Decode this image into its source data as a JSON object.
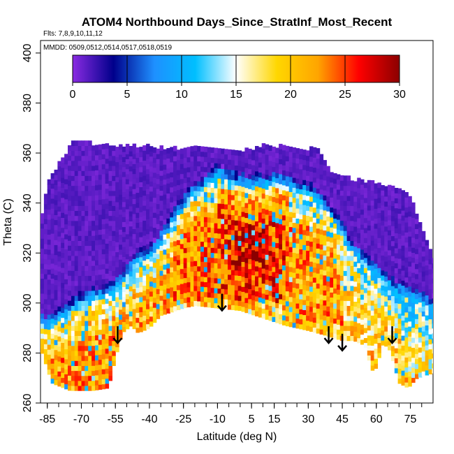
{
  "chart_data": {
    "type": "heatmap",
    "title": "ATOM4 Northbound Days_Since_StratInf_Most_Recent",
    "flights_note": "Flts: 7,8,9,10,11,12",
    "dates_note": "MMDD: 0509,0512,0514,0517,0518,0519",
    "xlabel": "Latitude (deg N)",
    "ylabel": "Theta (C)",
    "xlim": [
      -88,
      85
    ],
    "ylim": [
      260,
      405
    ],
    "x_ticks": [
      -85,
      -70,
      -55,
      -40,
      -25,
      -10,
      5,
      15,
      30,
      45,
      60,
      75
    ],
    "x_tick_labels": [
      "-85",
      "-70",
      "-55",
      "-40",
      "-25",
      "-10",
      "5",
      "15",
      "30",
      "45",
      "60",
      "75"
    ],
    "y_ticks": [
      260,
      280,
      300,
      320,
      340,
      360,
      380,
      400
    ],
    "y_tick_labels": [
      "260",
      "280",
      "300",
      "320",
      "340",
      "360",
      "380",
      "400"
    ],
    "colorbar": {
      "min": 0,
      "max": 30,
      "ticks": [
        0,
        5,
        10,
        15,
        20,
        25,
        30
      ],
      "tick_labels": [
        "0",
        "5",
        "10",
        "15",
        "20",
        "25",
        "30"
      ],
      "colors": [
        "#8a2be2",
        "#00008b",
        "#1e90ff",
        "#00bfff",
        "#ffffff",
        "#ffd700",
        "#ffa500",
        "#ff0000",
        "#8b0000"
      ]
    },
    "data_top_boundary": [
      [
        -88,
        332
      ],
      [
        -85,
        347
      ],
      [
        -82,
        352
      ],
      [
        -78,
        358
      ],
      [
        -74,
        363
      ],
      [
        -70,
        365
      ],
      [
        -65,
        363
      ],
      [
        -60,
        362
      ],
      [
        -50,
        362
      ],
      [
        -40,
        362
      ],
      [
        -30,
        361
      ],
      [
        -20,
        362
      ],
      [
        -10,
        360
      ],
      [
        0,
        360
      ],
      [
        10,
        362
      ],
      [
        20,
        362
      ],
      [
        30,
        361
      ],
      [
        35,
        360
      ],
      [
        40,
        352
      ],
      [
        44,
        350
      ],
      [
        48,
        349
      ],
      [
        55,
        348
      ],
      [
        62,
        347
      ],
      [
        68,
        345
      ],
      [
        75,
        342
      ],
      [
        80,
        330
      ],
      [
        85,
        318
      ]
    ],
    "data_bottom_boundary": [
      [
        -88,
        282
      ],
      [
        -83,
        268
      ],
      [
        -75,
        265
      ],
      [
        -65,
        265
      ],
      [
        -58,
        266
      ],
      [
        -55,
        278
      ],
      [
        -52,
        288
      ],
      [
        -48,
        291
      ],
      [
        -45,
        288
      ],
      [
        -40,
        290
      ],
      [
        -35,
        295
      ],
      [
        -25,
        298
      ],
      [
        -20,
        299
      ],
      [
        -10,
        298
      ],
      [
        0,
        297
      ],
      [
        10,
        294
      ],
      [
        20,
        291
      ],
      [
        30,
        289
      ],
      [
        38,
        287
      ],
      [
        45,
        285
      ],
      [
        50,
        285
      ],
      [
        55,
        283
      ],
      [
        58,
        273
      ],
      [
        60,
        274
      ],
      [
        63,
        284
      ],
      [
        66,
        281
      ],
      [
        70,
        268
      ],
      [
        74,
        266
      ],
      [
        78,
        270
      ],
      [
        85,
        272
      ]
    ],
    "stratospheric_boundary": [
      [
        -88,
        290
      ],
      [
        -85,
        288
      ],
      [
        -78,
        292
      ],
      [
        -70,
        298
      ],
      [
        -62,
        300
      ],
      [
        -55,
        303
      ],
      [
        -45,
        314
      ],
      [
        -38,
        318
      ],
      [
        -30,
        330
      ],
      [
        -22,
        340
      ],
      [
        -15,
        345
      ],
      [
        -10,
        349
      ],
      [
        -5,
        347
      ],
      [
        0,
        345
      ],
      [
        5,
        345
      ],
      [
        10,
        345
      ],
      [
        15,
        346
      ],
      [
        20,
        345
      ],
      [
        25,
        343
      ],
      [
        30,
        342
      ],
      [
        35,
        338
      ],
      [
        40,
        333
      ],
      [
        45,
        325
      ],
      [
        50,
        318
      ],
      [
        55,
        313
      ],
      [
        60,
        309
      ],
      [
        65,
        305
      ],
      [
        70,
        302
      ],
      [
        75,
        300
      ],
      [
        80,
        298
      ],
      [
        85,
        296
      ]
    ],
    "value_regions": [
      {
        "lat_range": [
          -88,
          -55
        ],
        "theta_range": [
          262,
          300
        ],
        "typical_value": 22
      },
      {
        "lat_range": [
          -55,
          -30
        ],
        "theta_range": [
          290,
          330
        ],
        "typical_value": 21
      },
      {
        "lat_range": [
          -30,
          -10
        ],
        "theta_range": [
          300,
          340
        ],
        "typical_value": 23
      },
      {
        "lat_range": [
          -10,
          20
        ],
        "theta_range": [
          300,
          345
        ],
        "typical_value": 25
      },
      {
        "lat_range": [
          -5,
          10
        ],
        "theta_range": [
          310,
          330
        ],
        "typical_value": 27
      },
      {
        "lat_range": [
          20,
          45
        ],
        "theta_range": [
          290,
          330
        ],
        "typical_value": 22
      },
      {
        "lat_range": [
          45,
          70
        ],
        "theta_range": [
          280,
          310
        ],
        "typical_value": 19
      },
      {
        "lat_range": [
          70,
          85
        ],
        "theta_range": [
          270,
          300
        ],
        "typical_value": 17
      }
    ],
    "arrows": [
      {
        "lat": -54,
        "theta": 284
      },
      {
        "lat": -8,
        "theta": 297
      },
      {
        "lat": 39,
        "theta": 284
      },
      {
        "lat": 45,
        "theta": 281
      },
      {
        "lat": 67,
        "theta": 284
      }
    ]
  }
}
